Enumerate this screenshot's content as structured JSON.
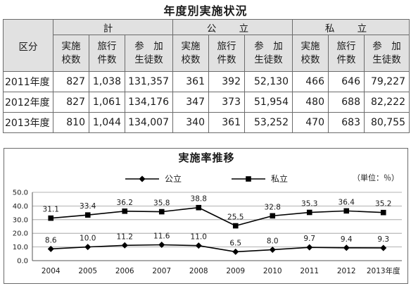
{
  "table": {
    "title": "年度別実施状況",
    "header_category": "区分",
    "groups": [
      "計",
      "公 立",
      "私 立"
    ],
    "subheaders": [
      [
        "実施",
        "校数"
      ],
      [
        "旅行",
        "件数"
      ],
      [
        "参　加",
        "生徒数"
      ]
    ],
    "rows": [
      {
        "year": "2011年度",
        "values": [
          "827",
          "1,038",
          "131,357",
          "361",
          "392",
          "52,130",
          "466",
          "646",
          "79,227"
        ]
      },
      {
        "year": "2012年度",
        "values": [
          "827",
          "1,061",
          "134,176",
          "347",
          "373",
          "51,954",
          "480",
          "688",
          "82,222"
        ]
      },
      {
        "year": "2013年度",
        "values": [
          "810",
          "1,044",
          "134,007",
          "340",
          "361",
          "53,252",
          "470",
          "683",
          "80,755"
        ]
      }
    ]
  },
  "chart": {
    "title": "実施率推移",
    "unit_label": "（単位：％）"
  },
  "chart_data": {
    "type": "line",
    "title": "実施率推移",
    "categories": [
      "2004",
      "2005",
      "2006",
      "2007",
      "2008",
      "2009",
      "2010",
      "2011",
      "2012",
      "2013年度"
    ],
    "series": [
      {
        "name": "公立",
        "marker": "diamond",
        "color": "#000000",
        "values": [
          8.6,
          10.0,
          11.2,
          11.6,
          11.0,
          6.5,
          8.0,
          9.7,
          9.4,
          9.3
        ]
      },
      {
        "name": "私立",
        "marker": "square",
        "color": "#000000",
        "values": [
          31.1,
          33.4,
          36.2,
          35.8,
          38.8,
          25.5,
          32.8,
          35.3,
          36.4,
          35.2
        ]
      }
    ],
    "value_labels": [
      [
        "8.6",
        "10.0",
        "11.2",
        "11.6",
        "11.0",
        "6.5",
        "8.0",
        "9.7",
        "9.4",
        "9.3"
      ],
      [
        "31.1",
        "33.4",
        "36.2",
        "35.8",
        "38.8",
        "25.5",
        "32.8",
        "35.3",
        "36.4",
        "35.2"
      ]
    ],
    "ylim": [
      0,
      50
    ],
    "yticks": [
      0,
      10,
      20,
      30,
      40,
      50
    ],
    "ytick_labels": [
      "0.0",
      "10.0",
      "20.0",
      "30.0",
      "40.0",
      "50.0"
    ],
    "grid": true,
    "legend": "top-center"
  }
}
